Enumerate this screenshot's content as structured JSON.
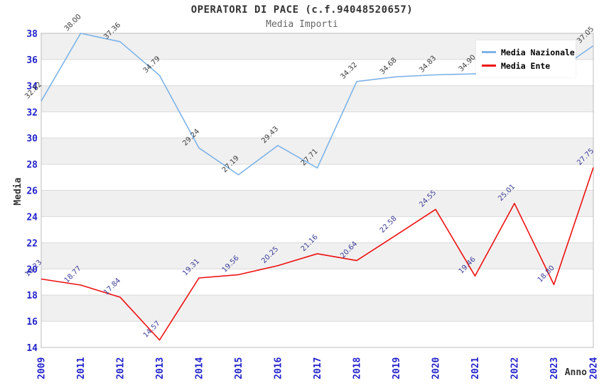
{
  "title": "OPERATORI DI PACE (c.f.94048520657)",
  "subtitle": "Media Importi",
  "legend": {
    "items": [
      {
        "label": "Media Nazionale",
        "color": "#7db3e8"
      },
      {
        "label": "Media Ente",
        "color": "#ee0f0f"
      }
    ]
  },
  "chart_data": {
    "type": "line",
    "title": "OPERATORI DI PACE (c.f.94048520657)",
    "subtitle": "Media Importi",
    "xlabel": "Anno",
    "ylabel": "Media",
    "categories": [
      "2009",
      "2011",
      "2012",
      "2013",
      "2014",
      "2015",
      "2016",
      "2017",
      "2018",
      "2019",
      "2020",
      "2021",
      "2022",
      "2023",
      "2024"
    ],
    "series": [
      {
        "name": "Media Nazionale",
        "color": "#7db3e8",
        "label_color": "#3c3c3c",
        "values": [
          32.82,
          38.0,
          37.36,
          34.79,
          29.24,
          27.19,
          29.43,
          27.71,
          34.32,
          34.68,
          34.83,
          34.9,
          34.94,
          34.97,
          37.05
        ],
        "labels_hidden_by_legend": [
          "2021",
          "2022",
          "2023"
        ]
      },
      {
        "name": "Media Ente",
        "color": "#ee0f0f",
        "label_color": "#3c3c99",
        "values": [
          19.23,
          18.77,
          17.84,
          14.57,
          19.31,
          19.56,
          20.25,
          21.16,
          20.64,
          22.58,
          24.55,
          19.46,
          25.01,
          18.8,
          27.75
        ]
      }
    ],
    "ylim": [
      14,
      38
    ],
    "ytick_step": 2,
    "grid": "alternating-horizontal-bands",
    "legend_position": "top-right",
    "colors": {
      "band": "#f0f0f0",
      "band_alt": "#ffffff",
      "grid_line": "#d9d9d9",
      "plot_border": "#bdbdbd",
      "axis_ticks": "#2222cc",
      "axis_titles": "#333333"
    }
  }
}
